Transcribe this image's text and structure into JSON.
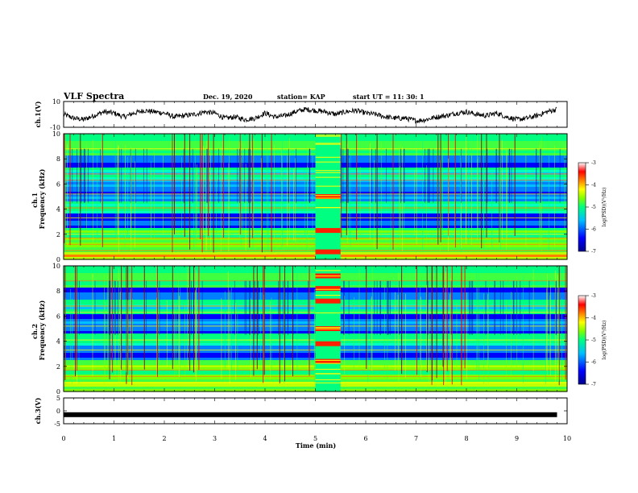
{
  "header": {
    "title": "VLF Spectra",
    "date": "Dec. 19, 2020",
    "station": "station= KAP",
    "start": "start  UT =   11: 30: 1"
  },
  "chart_data": [
    {
      "id": "ch1-waveform",
      "type": "line",
      "ylabel": "ch.1(V)",
      "ylim": [
        -10,
        10
      ],
      "yticks": [
        "10",
        "-10"
      ],
      "xlim": [
        0,
        10
      ],
      "data_extent_min": [
        0,
        9.8
      ],
      "note_values": "noisy waveform fluctuating roughly between -6 and 6 V",
      "series": [
        {
          "x": [
            0,
            0.2,
            0.4,
            0.6,
            0.8,
            1.0,
            1.2,
            1.4,
            1.6,
            1.8,
            2.0,
            2.2,
            2.4,
            2.6,
            2.8,
            3.0,
            3.2,
            3.4,
            3.6,
            3.8,
            4.0,
            4.2,
            4.4,
            4.6,
            4.8,
            5.0,
            5.2,
            5.4,
            5.6,
            5.8,
            6.0,
            6.2,
            6.4,
            6.6,
            6.8,
            7.0,
            7.2,
            7.4,
            7.6,
            7.8,
            8.0,
            8.2,
            8.4,
            8.6,
            8.8,
            9.0,
            9.2,
            9.4,
            9.6,
            9.8
          ],
          "values": [
            0,
            -3,
            -4,
            -1,
            2,
            1,
            -2,
            1,
            3,
            2,
            1,
            -2,
            -1,
            0,
            2,
            1,
            -3,
            -2,
            -4,
            -3,
            1,
            -2,
            -1,
            2,
            4,
            3,
            2,
            0,
            2,
            3,
            1,
            0,
            -2,
            -3,
            -3,
            -5,
            -4,
            -2,
            -1,
            1,
            2,
            0,
            -1,
            1,
            -2,
            -4,
            -3,
            -1,
            2,
            4
          ]
        }
      ]
    },
    {
      "id": "ch1-spectrogram",
      "type": "heatmap",
      "ylabel": "ch.1\nFrequency (kHz)",
      "ylim": [
        0,
        10
      ],
      "yticks": [
        "0",
        "2",
        "4",
        "6",
        "8",
        "10"
      ],
      "xlim": [
        0,
        10
      ],
      "colorbar": {
        "label": "log(PSD)(V²/Hz)",
        "ticks": [
          "-3",
          "-4",
          "-5",
          "-6",
          "-7"
        ],
        "range": [
          -7,
          -3
        ]
      }
    },
    {
      "id": "ch2-spectrogram",
      "type": "heatmap",
      "ylabel": "ch.2\nFrequency (kHz)",
      "ylim": [
        0,
        10
      ],
      "yticks": [
        "0",
        "2",
        "4",
        "6",
        "8",
        "10"
      ],
      "xlim": [
        0,
        10
      ],
      "colorbar": {
        "label": "log(PSD)(V²/Hz)",
        "ticks": [
          "-3",
          "-4",
          "-5",
          "-6",
          "-7"
        ],
        "range": [
          -7,
          -3
        ]
      }
    },
    {
      "id": "ch3-waveform",
      "type": "line",
      "ylabel": "ch.3(V)",
      "ylim": [
        -5,
        5
      ],
      "yticks": [
        "5",
        "0",
        "-5"
      ],
      "xlim": [
        0,
        10
      ],
      "series": [
        {
          "x": [
            0,
            9.8
          ],
          "values": [
            -1.5,
            -1.5
          ]
        }
      ]
    }
  ],
  "xaxis": {
    "label": "Time  (min)",
    "ticks": [
      "0",
      "1",
      "2",
      "3",
      "4",
      "5",
      "6",
      "7",
      "8",
      "9",
      "10"
    ]
  },
  "colors": {
    "scale": [
      "#00008b",
      "#0000ff",
      "#00bfff",
      "#00ff80",
      "#80ff00",
      "#ffff00",
      "#ff8000",
      "#ff0000",
      "#8b0000"
    ]
  }
}
